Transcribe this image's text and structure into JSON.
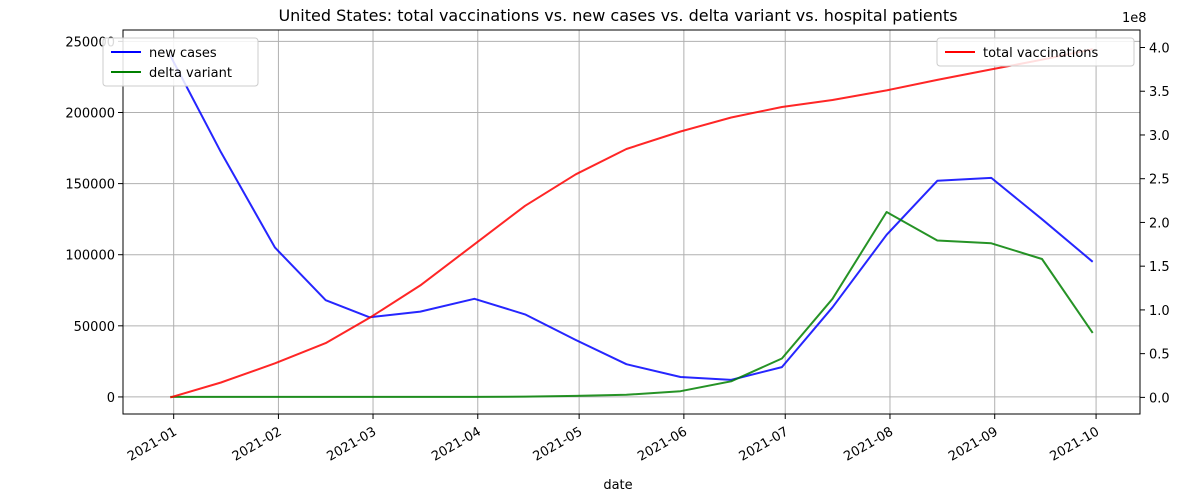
{
  "chart_data": {
    "type": "line",
    "title": "United States: total vaccinations vs. new cases vs. delta variant vs. hospital patients",
    "xlabel": "date",
    "x": [
      "2020-12-31",
      "2021-01-15",
      "2021-01-31",
      "2021-02-15",
      "2021-02-28",
      "2021-03-15",
      "2021-03-31",
      "2021-04-15",
      "2021-04-30",
      "2021-05-15",
      "2021-05-31",
      "2021-06-15",
      "2021-06-30",
      "2021-07-15",
      "2021-07-31",
      "2021-08-15",
      "2021-08-31",
      "2021-09-15",
      "2021-09-30"
    ],
    "x_tick_labels": [
      "2021-01",
      "2021-02",
      "2021-03",
      "2021-04",
      "2021-05",
      "2021-06",
      "2021-07",
      "2021-08",
      "2021-09",
      "2021-10"
    ],
    "x_tick_dates": [
      "2021-01-01",
      "2021-02-01",
      "2021-03-01",
      "2021-04-01",
      "2021-05-01",
      "2021-06-01",
      "2021-07-01",
      "2021-08-01",
      "2021-09-01",
      "2021-10-01"
    ],
    "xlim": [
      "2020-12-17",
      "2021-10-14"
    ],
    "grid": true,
    "left_axis": {
      "ylim": [
        -12000,
        258000
      ],
      "ticks": [
        0,
        50000,
        100000,
        150000,
        200000,
        250000
      ],
      "tick_labels": [
        "0",
        "50000",
        "100000",
        "150000",
        "200000",
        "250000"
      ],
      "legend_position": "top-left"
    },
    "right_axis": {
      "ylim": [
        -0.19,
        4.2
      ],
      "ticks": [
        0.0,
        0.5,
        1.0,
        1.5,
        2.0,
        2.5,
        3.0,
        3.5,
        4.0
      ],
      "tick_labels": [
        "0.0",
        "0.5",
        "1.0",
        "1.5",
        "2.0",
        "2.5",
        "3.0",
        "3.5",
        "4.0"
      ],
      "offset_label": "1e8",
      "legend_position": "top-right"
    },
    "series": [
      {
        "name": "new cases",
        "axis": "left",
        "color": "#0000ff",
        "values": [
          240000,
          172000,
          105000,
          68000,
          56000,
          60000,
          69000,
          58000,
          40000,
          23000,
          14000,
          12000,
          21000,
          63000,
          114000,
          152000,
          154000,
          125000,
          95000
        ]
      },
      {
        "name": "delta variant",
        "axis": "left",
        "color": "#008000",
        "values": [
          0,
          0,
          0,
          0,
          0,
          0,
          0,
          200,
          700,
          1500,
          4000,
          11000,
          27000,
          69000,
          130000,
          110000,
          108000,
          97000,
          45000
        ]
      },
      {
        "name": "total vaccinations",
        "axis": "right",
        "color": "#ff0000",
        "values": [
          0.0,
          0.17,
          0.39,
          0.62,
          0.91,
          1.28,
          1.75,
          2.19,
          2.55,
          2.84,
          3.04,
          3.2,
          3.32,
          3.4,
          3.51,
          3.63,
          3.75,
          3.86,
          3.98
        ]
      }
    ]
  }
}
